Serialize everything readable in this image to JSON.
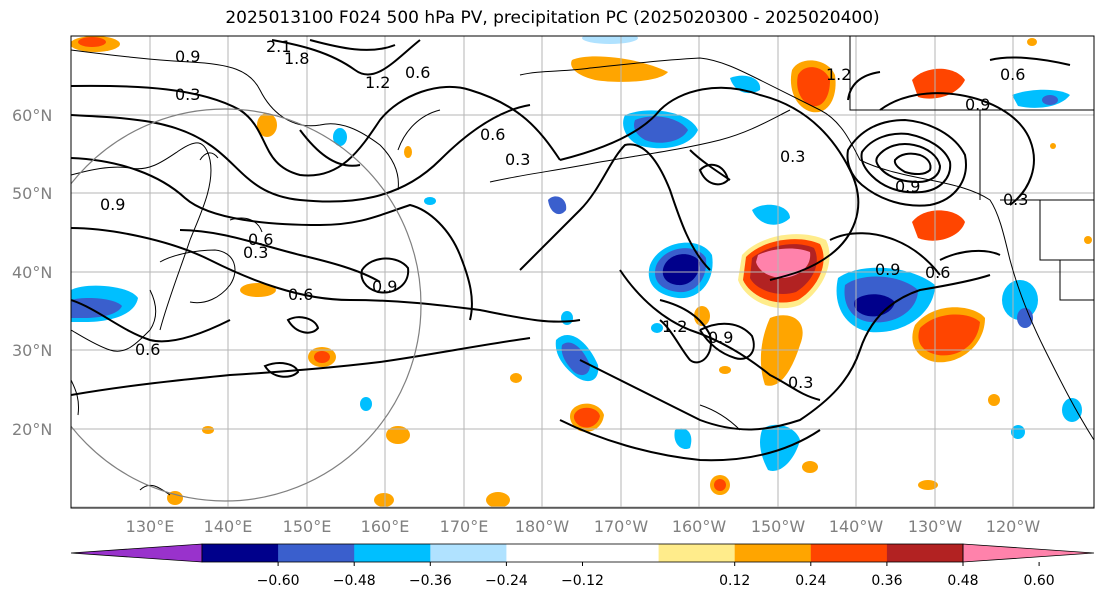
{
  "title": "2025013100 F024 500 hPa PV, precipitation PC (2025020300 - 2025020400)",
  "lat_labels": [
    "60°N",
    "50°N",
    "40°N",
    "30°N",
    "20°N"
  ],
  "lon_labels": [
    "130°E",
    "140°E",
    "150°E",
    "160°E",
    "170°E",
    "180°W",
    "170°W",
    "160°W",
    "150°W",
    "140°W",
    "130°W",
    "120°W"
  ],
  "contour_labels": [
    "2.1",
    "1.8",
    "1.2",
    "0.6",
    "0.9",
    "0.3",
    "0.6",
    "0.3",
    "0.9",
    "0.6",
    "0.3",
    "0.9",
    "0.6",
    "0.6",
    "1.2",
    "0.9",
    "0.3",
    "0.9",
    "0.6",
    "0.3",
    "1.2",
    "0.6",
    "0.9",
    "0.3",
    "0.9"
  ],
  "colorbar": {
    "colors": [
      "#9932cc",
      "#00008b",
      "#3a5fcd",
      "#00bfff",
      "#b0e2ff",
      "#ffffff",
      "#ffffff",
      "#ffec8b",
      "#ffa500",
      "#ff4500",
      "#b22222",
      "#ff82ab"
    ],
    "labels": [
      "−0.60",
      "−0.48",
      "−0.36",
      "−0.24",
      "−0.12",
      "0.12",
      "0.24",
      "0.36",
      "0.48",
      "0.60"
    ]
  }
}
